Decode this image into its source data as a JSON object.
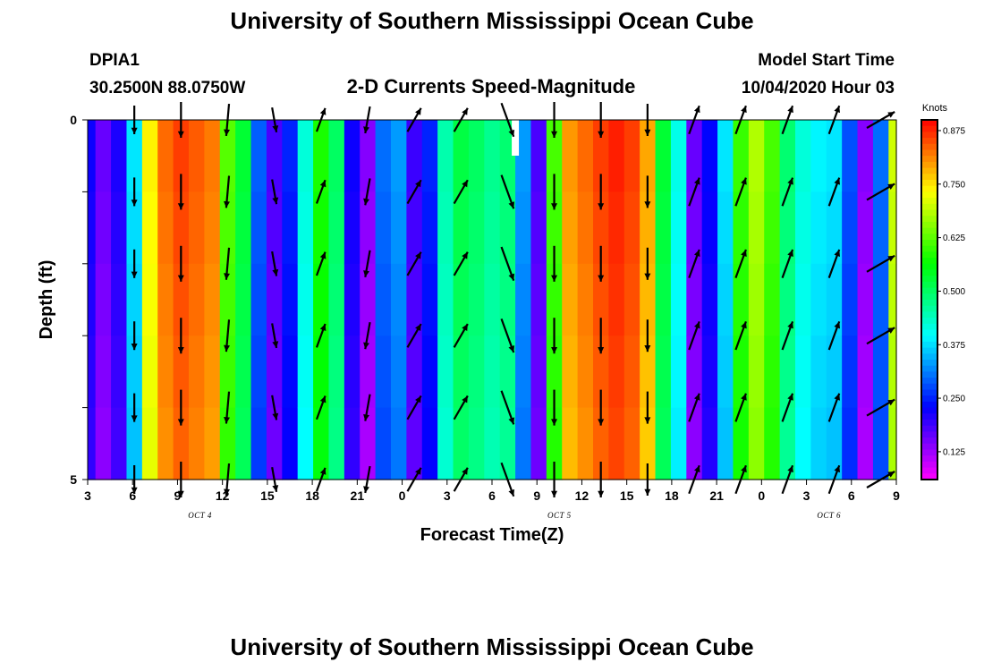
{
  "page": {
    "title_top": "University of Southern Mississippi Ocean Cube",
    "title_bottom": "University of Southern Mississippi Ocean Cube",
    "station": "DPIA1",
    "location": "30.2500N 88.0750W",
    "plot_title": "2-D Currents Speed-Magnitude",
    "model_start_label": "Model Start Time",
    "model_start_value": "10/04/2020 Hour 03"
  },
  "chart_data": {
    "type": "heatmap",
    "title": "2-D Currents Speed-Magnitude",
    "xlabel": "Forecast Time(Z)",
    "ylabel": "Depth (ft)",
    "x_tick_labels": [
      "3",
      "6",
      "9",
      "12",
      "15",
      "18",
      "21",
      "0",
      "3",
      "6",
      "9",
      "12",
      "15",
      "18",
      "21",
      "0",
      "3",
      "6",
      "9"
    ],
    "date_labels": [
      {
        "label": "OCT 4",
        "at_tick": 2.5
      },
      {
        "label": "OCT 5",
        "at_tick": 10.5
      },
      {
        "label": "OCT 6",
        "at_tick": 16.5
      }
    ],
    "y_tick_labels": [
      "0",
      "",
      "",
      "",
      "",
      "5"
    ],
    "ylim": [
      0,
      5
    ],
    "y_inverted": true,
    "colorbar": {
      "label": "Knots",
      "min": 0.06,
      "max": 0.9,
      "ticks": [
        "0.125",
        "0.250",
        "0.375",
        "0.500",
        "0.625",
        "0.750",
        "0.875"
      ]
    },
    "hours": [
      3,
      4,
      5,
      6,
      7,
      8,
      9,
      10,
      11,
      12,
      13,
      14,
      15,
      16,
      17,
      18,
      19,
      20,
      21,
      22,
      23,
      24,
      25,
      26,
      27,
      28,
      29,
      30,
      31,
      32,
      33,
      34,
      35,
      36,
      37,
      38,
      39,
      40,
      41,
      42,
      43,
      44,
      45,
      46,
      47,
      48,
      49,
      50,
      51,
      52,
      53,
      54,
      55
    ],
    "speed_knots": [
      0.22,
      0.16,
      0.21,
      0.38,
      0.74,
      0.83,
      0.86,
      0.84,
      0.82,
      0.62,
      0.53,
      0.29,
      0.18,
      0.25,
      0.42,
      0.58,
      0.5,
      0.22,
      0.14,
      0.3,
      0.33,
      0.19,
      0.25,
      0.45,
      0.52,
      0.5,
      0.47,
      0.49,
      0.33,
      0.18,
      0.61,
      0.8,
      0.83,
      0.86,
      0.88,
      0.86,
      0.79,
      0.53,
      0.41,
      0.16,
      0.23,
      0.38,
      0.6,
      0.68,
      0.61,
      0.49,
      0.42,
      0.39,
      0.38,
      0.28,
      0.14,
      0.3,
      0.7
    ],
    "flagged_cell": {
      "hour": 30.5,
      "depth": 0
    },
    "arrows": {
      "depths": [
        0,
        1,
        2,
        3,
        4,
        5
      ],
      "hours": [
        6,
        9,
        12,
        15,
        18,
        21,
        24,
        27,
        30,
        33,
        36,
        39,
        42,
        45,
        48,
        51,
        54
      ],
      "direction_deg": [
        180,
        180,
        185,
        170,
        20,
        190,
        30,
        30,
        160,
        180,
        180,
        180,
        20,
        20,
        20,
        20,
        60
      ],
      "length_knots": [
        0.4,
        0.5,
        0.45,
        0.35,
        0.35,
        0.38,
        0.38,
        0.38,
        0.5,
        0.5,
        0.5,
        0.45,
        0.42,
        0.42,
        0.42,
        0.42,
        0.45
      ]
    }
  }
}
